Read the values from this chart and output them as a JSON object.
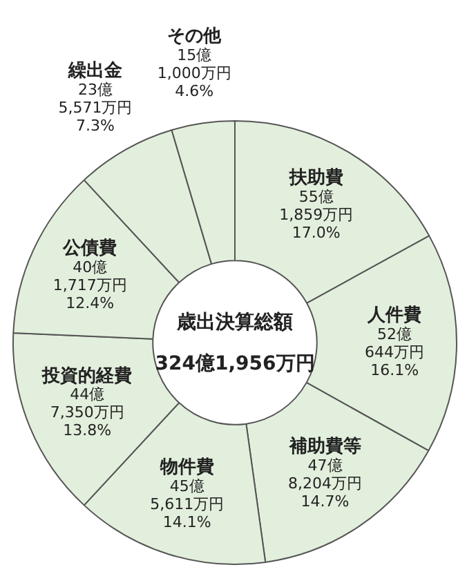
{
  "chart_data": {
    "type": "donut",
    "categories": [
      "扶助費",
      "人件費",
      "補助費等",
      "物件費",
      "投資的経費",
      "公債費",
      "繰出金",
      "その他"
    ],
    "values": [
      17.0,
      16.1,
      14.7,
      14.1,
      13.8,
      12.4,
      7.3,
      4.6
    ],
    "value_labels": [
      "55億\n1,859万円\n17.0%",
      "52億\n644万円\n16.1%",
      "47億\n8,204万円\n14.7%",
      "45億\n5,611万円\n14.1%",
      "44億\n7,350万円\n13.8%",
      "40億\n1,717万円\n12.4%",
      "23億\n5,571万円\n7.3%",
      "15億\n1,000万円\n4.6%"
    ],
    "colors": [
      "#e3efdd",
      "#e3efdd",
      "#e3efdd",
      "#e3efdd",
      "#e3efdd",
      "#e3efdd",
      "#e3efdd",
      "#e3efdd"
    ],
    "annotations": [
      "歳出決算総額",
      "324億1,956万円"
    ],
    "legend": false
  }
}
